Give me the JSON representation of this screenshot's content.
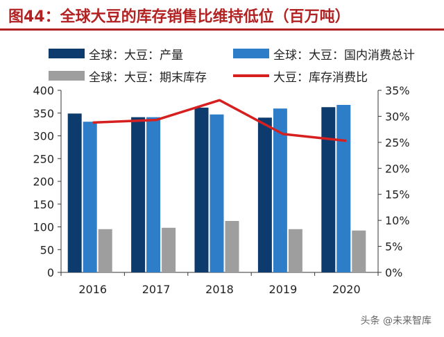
{
  "figure_title": "图44：全球大豆的库存销售比维持低位（百万吨）",
  "footer_text": "头条 @未来智库",
  "colors": {
    "title": "#b22222",
    "production": "#0d3b6e",
    "consumption": "#2e7dc8",
    "ending_stock": "#9e9e9e",
    "ratio_line": "#d62020"
  },
  "chart_data": {
    "type": "bar",
    "title": "",
    "categories": [
      "2016",
      "2017",
      "2018",
      "2019",
      "2020"
    ],
    "series": [
      {
        "name": "全球：大豆：产量",
        "kind": "bar",
        "axis": "left",
        "values": [
          349,
          341,
          362,
          340,
          363
        ]
      },
      {
        "name": "全球：大豆：国内消费总计",
        "kind": "bar",
        "axis": "left",
        "values": [
          331,
          341,
          347,
          360,
          368
        ]
      },
      {
        "name": "全球：大豆：期末库存",
        "kind": "bar",
        "axis": "left",
        "values": [
          95,
          98,
          113,
          95,
          92
        ]
      },
      {
        "name": "大豆：库存消费比",
        "kind": "line",
        "axis": "right",
        "values": [
          28.8,
          29.3,
          33.1,
          26.6,
          25.3
        ]
      }
    ],
    "y_left": {
      "min": 0,
      "max": 400,
      "ticks": [
        "0",
        "50",
        "100",
        "150",
        "200",
        "250",
        "300",
        "350",
        "400"
      ]
    },
    "y_right": {
      "min": 0,
      "max": 35,
      "ticks": [
        "0%",
        "5%",
        "10%",
        "15%",
        "20%",
        "25%",
        "30%",
        "35%"
      ]
    },
    "grid": false,
    "legend_position": "top"
  }
}
